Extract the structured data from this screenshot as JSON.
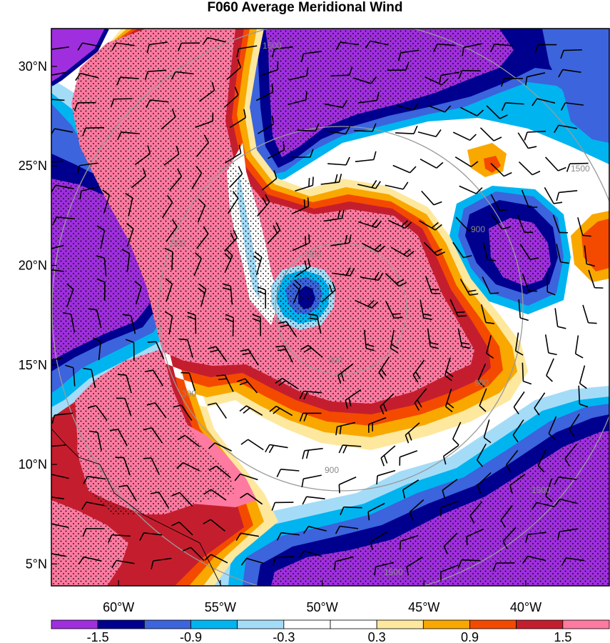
{
  "title": "F060 Average Meridional Wind",
  "map": {
    "lon_range": [
      -63.3,
      -35.9
    ],
    "lat_range": [
      3.9,
      31.9
    ],
    "lat_ticks": [
      {
        "value": 30,
        "label": "30°N"
      },
      {
        "value": 25,
        "label": "25°N"
      },
      {
        "value": 20,
        "label": "20°N"
      },
      {
        "value": 15,
        "label": "15°N"
      },
      {
        "value": 10,
        "label": "10°N"
      },
      {
        "value": 5,
        "label": "5°N"
      }
    ],
    "lon_ticks": [
      {
        "value": -60,
        "label": "60°W"
      },
      {
        "value": -55,
        "label": "55°W"
      },
      {
        "value": -50,
        "label": "50°W"
      },
      {
        "value": -45,
        "label": "45°W"
      },
      {
        "value": -40,
        "label": "40°W"
      }
    ],
    "range_rings": {
      "center": [
        -49.3,
        17.0
      ],
      "labels": [
        "300",
        "300",
        "300",
        "900",
        "900",
        "900",
        "900",
        "1500",
        "1500",
        "1500",
        "1500"
      ]
    }
  },
  "colorbar": {
    "colors": [
      "#9f2fde",
      "#00008f",
      "#3c64dc",
      "#00b4f0",
      "#a4dcf8",
      "#ffffff",
      "#ffffff",
      "#fde89e",
      "#f9a800",
      "#f44a00",
      "#c41e2e",
      "#ff7aa0"
    ],
    "labels": [
      "-1.5",
      "-0.9",
      "-0.3",
      "0.3",
      "0.9",
      "1.5"
    ]
  },
  "legend_colors": {
    "purple": "#9f2fde",
    "navy": "#00008f",
    "royal": "#3c64dc",
    "cyan": "#00b4f0",
    "lightblue": "#a4dcf8",
    "white": "#ffffff",
    "cream": "#fde89e",
    "orange": "#f9a800",
    "redorange": "#f44a00",
    "crimson": "#c41e2e",
    "pink": "#ff7aa0"
  }
}
